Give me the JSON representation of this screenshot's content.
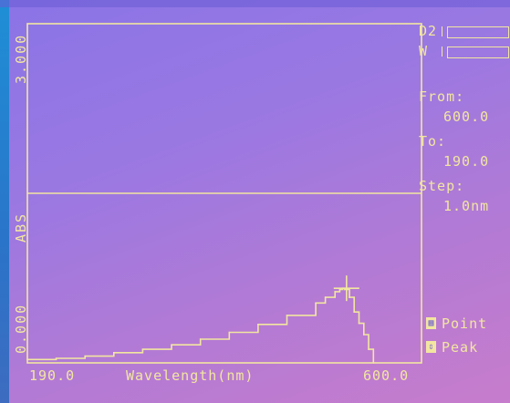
{
  "plot": {
    "y_top_label": "3.000",
    "y_axis_label": "ABS",
    "y_bottom_label": "0.000",
    "x_left_label": "190.0",
    "x_axis_label": "Wavelength(nm)",
    "x_right_label": "600.0"
  },
  "lamps": [
    {
      "label": "D2"
    },
    {
      "label": "W"
    }
  ],
  "scan": {
    "from_label": "From:",
    "from_value": "600.0",
    "to_label": "To:",
    "to_value": "190.0",
    "step_label": "Step:",
    "step_value": "1.0nm"
  },
  "softkeys": [
    {
      "label": "Point",
      "icon": "grid-icon"
    },
    {
      "label": "Peak",
      "icon": "up-down-arrow-icon"
    }
  ],
  "chart_data": {
    "type": "line",
    "xlabel": "Wavelength(nm)",
    "ylabel": "ABS",
    "xlim": [
      190.0,
      600.0
    ],
    "ylim": [
      0.0,
      3.0
    ],
    "x_direction": "reversed",
    "series": [
      {
        "x": [
          600,
          570,
          540,
          510,
          480,
          450,
          420,
          390,
          360,
          330,
          300,
          290,
          280,
          275,
          272,
          270,
          265,
          260,
          255,
          250,
          245,
          240
        ],
        "y": [
          0.03,
          0.04,
          0.06,
          0.09,
          0.12,
          0.16,
          0.21,
          0.27,
          0.34,
          0.42,
          0.53,
          0.58,
          0.63,
          0.65,
          0.66,
          0.65,
          0.58,
          0.45,
          0.35,
          0.25,
          0.12,
          0.0
        ]
      }
    ],
    "cursor": {
      "x": 268,
      "y": 0.66
    }
  }
}
